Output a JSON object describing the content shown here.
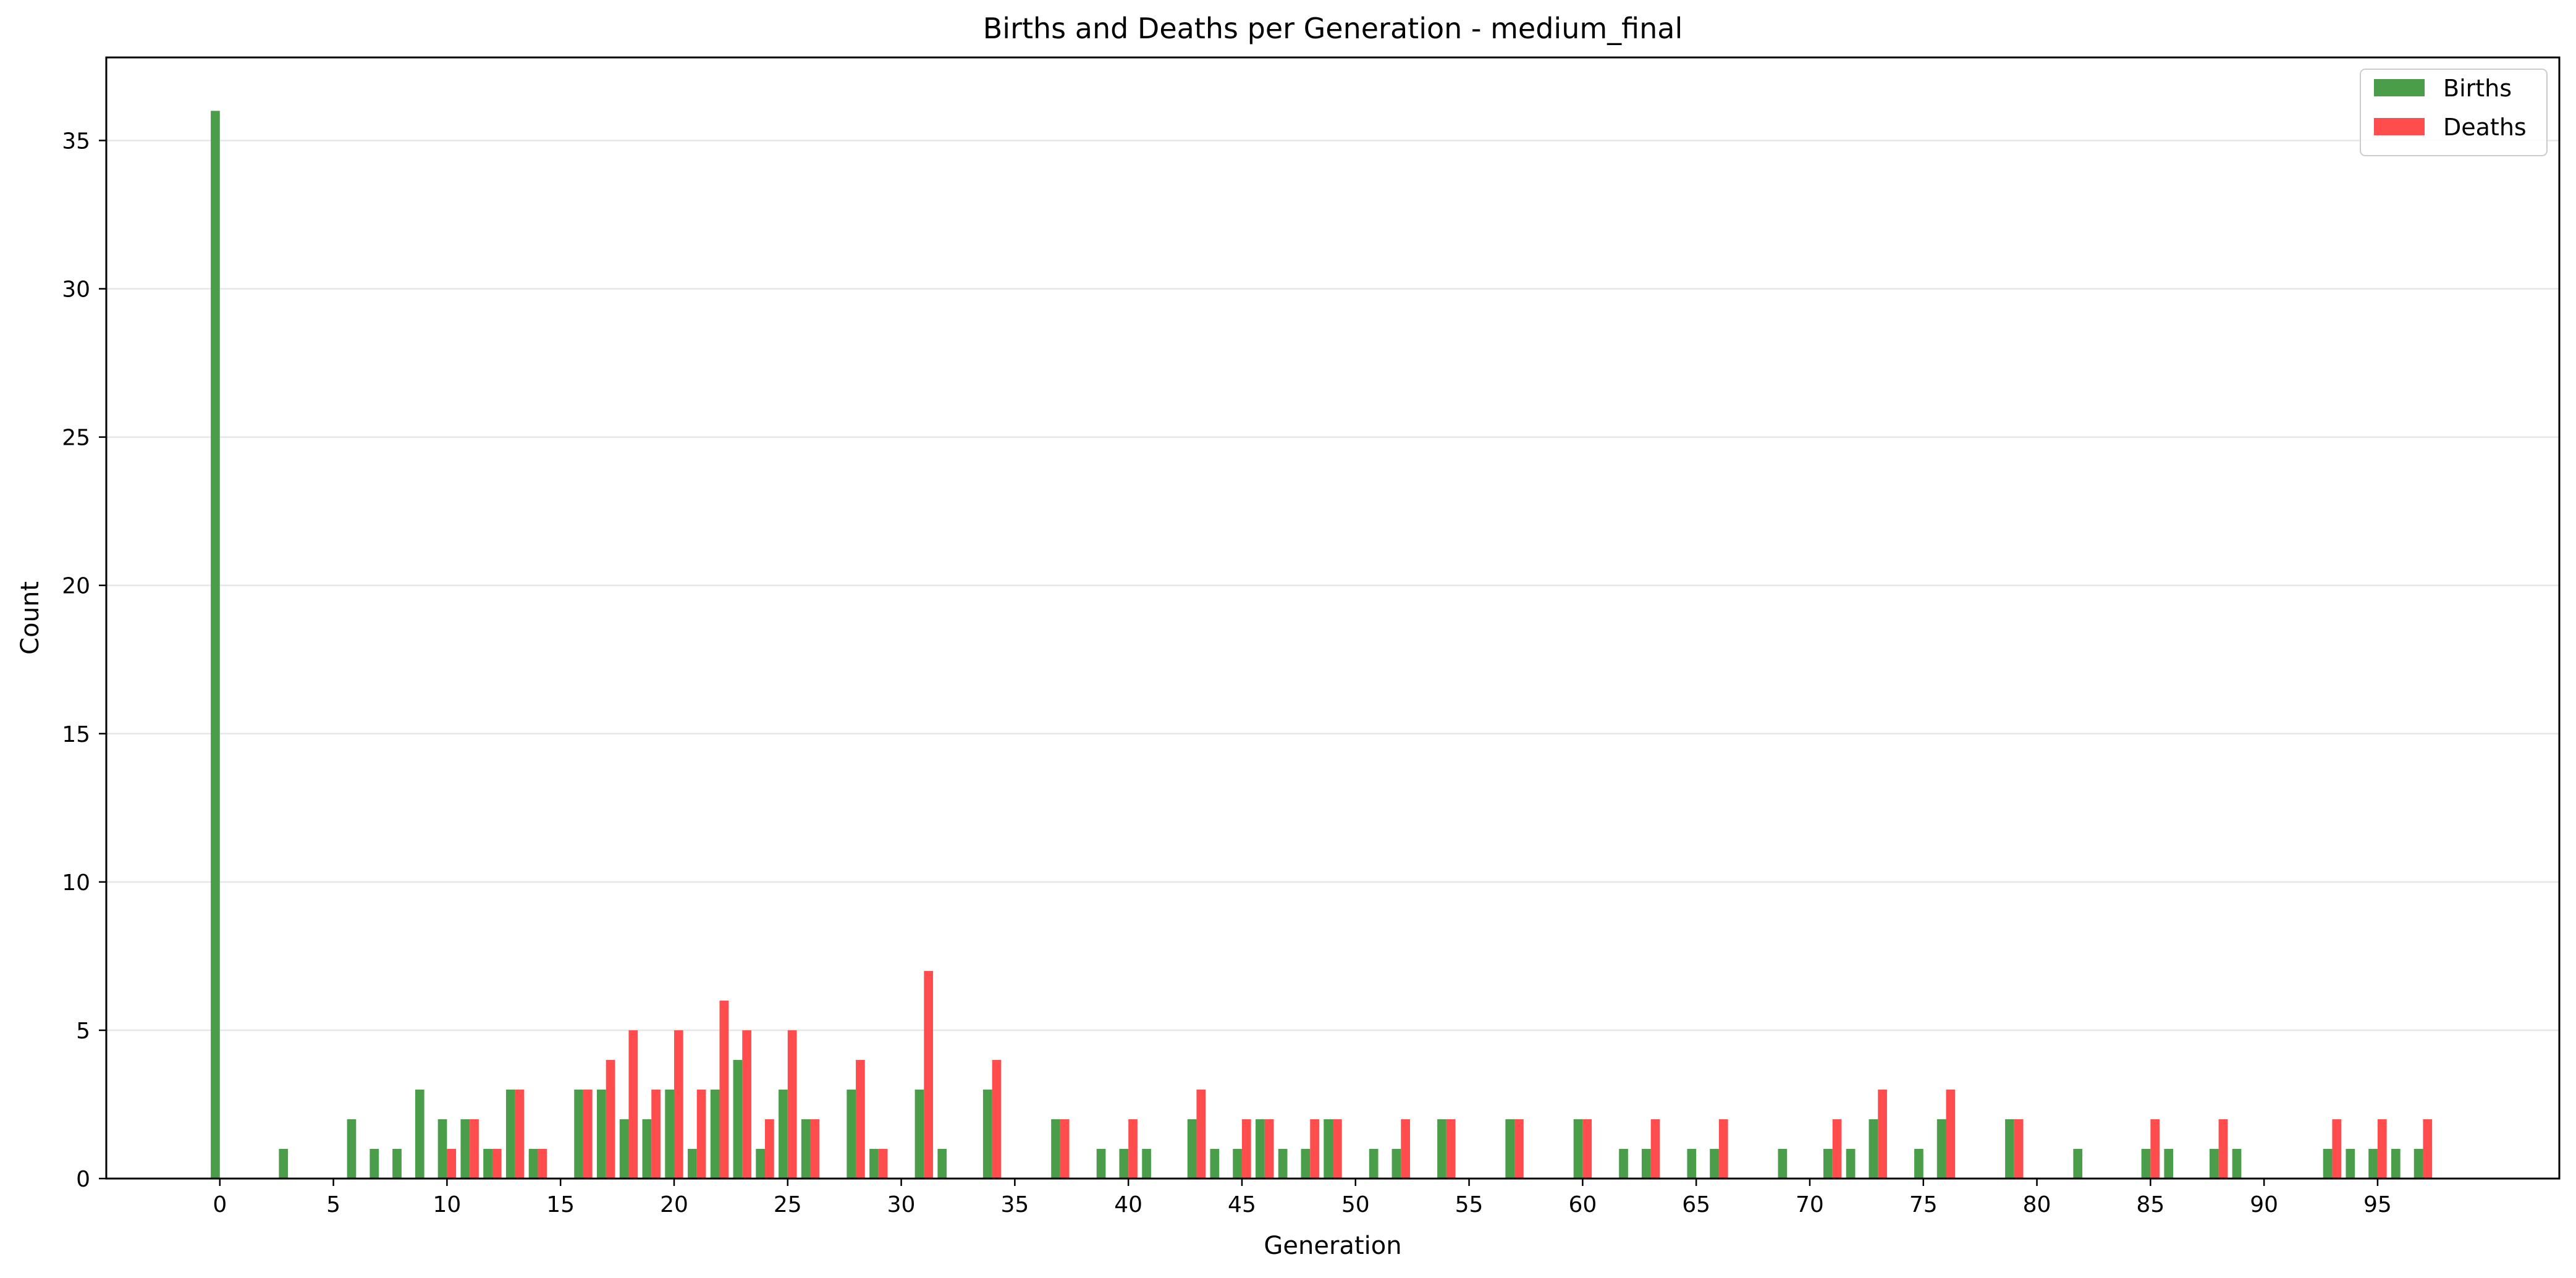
{
  "chart_data": {
    "type": "bar",
    "title": "Births and Deaths per Generation - medium_final",
    "xlabel": "Generation",
    "ylabel": "Count",
    "xlim": [
      -5,
      103
    ],
    "ylim": [
      0,
      37.8
    ],
    "xticks": [
      0,
      5,
      10,
      15,
      20,
      25,
      30,
      35,
      40,
      45,
      50,
      55,
      60,
      65,
      70,
      75,
      80,
      85,
      90,
      95
    ],
    "yticks": [
      0,
      5,
      10,
      15,
      20,
      25,
      30,
      35
    ],
    "grid": "y",
    "legend": "top-right",
    "series": [
      {
        "name": "Births",
        "color": "#4a9e4a",
        "points": [
          [
            0,
            36
          ],
          [
            3,
            1
          ],
          [
            6,
            2
          ],
          [
            7,
            1
          ],
          [
            8,
            1
          ],
          [
            9,
            3
          ],
          [
            10,
            2
          ],
          [
            11,
            2
          ],
          [
            12,
            1
          ],
          [
            13,
            3
          ],
          [
            14,
            1
          ],
          [
            16,
            3
          ],
          [
            17,
            3
          ],
          [
            18,
            2
          ],
          [
            19,
            2
          ],
          [
            20,
            3
          ],
          [
            21,
            1
          ],
          [
            22,
            3
          ],
          [
            23,
            4
          ],
          [
            24,
            1
          ],
          [
            25,
            3
          ],
          [
            26,
            2
          ],
          [
            28,
            3
          ],
          [
            29,
            1
          ],
          [
            31,
            3
          ],
          [
            32,
            1
          ],
          [
            34,
            3
          ],
          [
            37,
            2
          ],
          [
            39,
            1
          ],
          [
            40,
            1
          ],
          [
            41,
            1
          ],
          [
            43,
            2
          ],
          [
            44,
            1
          ],
          [
            45,
            1
          ],
          [
            46,
            2
          ],
          [
            47,
            1
          ],
          [
            48,
            1
          ],
          [
            49,
            2
          ],
          [
            51,
            1
          ],
          [
            52,
            1
          ],
          [
            54,
            2
          ],
          [
            57,
            2
          ],
          [
            60,
            2
          ],
          [
            62,
            1
          ],
          [
            63,
            1
          ],
          [
            65,
            1
          ],
          [
            66,
            1
          ],
          [
            69,
            1
          ],
          [
            71,
            1
          ],
          [
            72,
            1
          ],
          [
            73,
            2
          ],
          [
            75,
            1
          ],
          [
            76,
            2
          ],
          [
            79,
            2
          ],
          [
            82,
            1
          ],
          [
            85,
            1
          ],
          [
            86,
            1
          ],
          [
            88,
            1
          ],
          [
            89,
            1
          ],
          [
            93,
            1
          ],
          [
            94,
            1
          ],
          [
            95,
            1
          ],
          [
            96,
            1
          ],
          [
            97,
            1
          ]
        ]
      },
      {
        "name": "Deaths",
        "color": "#ff4d4d",
        "points": [
          [
            10,
            1
          ],
          [
            11,
            2
          ],
          [
            12,
            1
          ],
          [
            13,
            3
          ],
          [
            14,
            1
          ],
          [
            16,
            3
          ],
          [
            17,
            4
          ],
          [
            18,
            5
          ],
          [
            19,
            3
          ],
          [
            20,
            5
          ],
          [
            21,
            3
          ],
          [
            22,
            6
          ],
          [
            23,
            5
          ],
          [
            24,
            2
          ],
          [
            25,
            5
          ],
          [
            26,
            2
          ],
          [
            28,
            4
          ],
          [
            29,
            1
          ],
          [
            31,
            7
          ],
          [
            34,
            4
          ],
          [
            37,
            2
          ],
          [
            40,
            2
          ],
          [
            43,
            3
          ],
          [
            45,
            2
          ],
          [
            46,
            2
          ],
          [
            48,
            2
          ],
          [
            49,
            2
          ],
          [
            52,
            2
          ],
          [
            54,
            2
          ],
          [
            57,
            2
          ],
          [
            60,
            2
          ],
          [
            63,
            2
          ],
          [
            66,
            2
          ],
          [
            71,
            2
          ],
          [
            73,
            3
          ],
          [
            76,
            3
          ],
          [
            79,
            2
          ],
          [
            85,
            2
          ],
          [
            88,
            2
          ],
          [
            93,
            2
          ],
          [
            95,
            2
          ],
          [
            97,
            2
          ]
        ]
      }
    ]
  }
}
